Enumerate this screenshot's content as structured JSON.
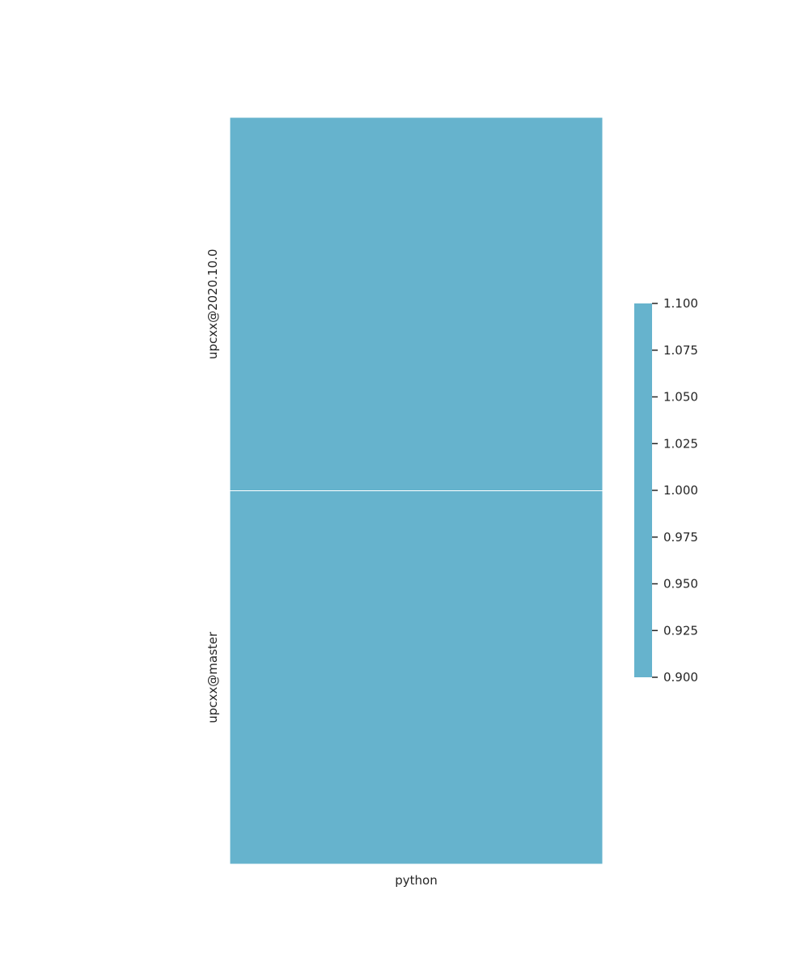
{
  "chart_data": {
    "type": "heatmap",
    "title": "",
    "xlabel": "",
    "ylabel": "",
    "x_categories": [
      "python"
    ],
    "y_categories": [
      "upcxx@2020.10.0",
      "upcxx@master"
    ],
    "values": [
      [
        1
      ],
      [
        1
      ]
    ],
    "colorbar": {
      "vmin": 0.9,
      "vmax": 1.1,
      "ticks": [
        "0.900",
        "0.925",
        "0.950",
        "0.975",
        "1.000",
        "1.025",
        "1.050",
        "1.075",
        "1.100"
      ]
    },
    "cell_color": "#66b3cd",
    "cell_border_color": "#ffffff"
  }
}
